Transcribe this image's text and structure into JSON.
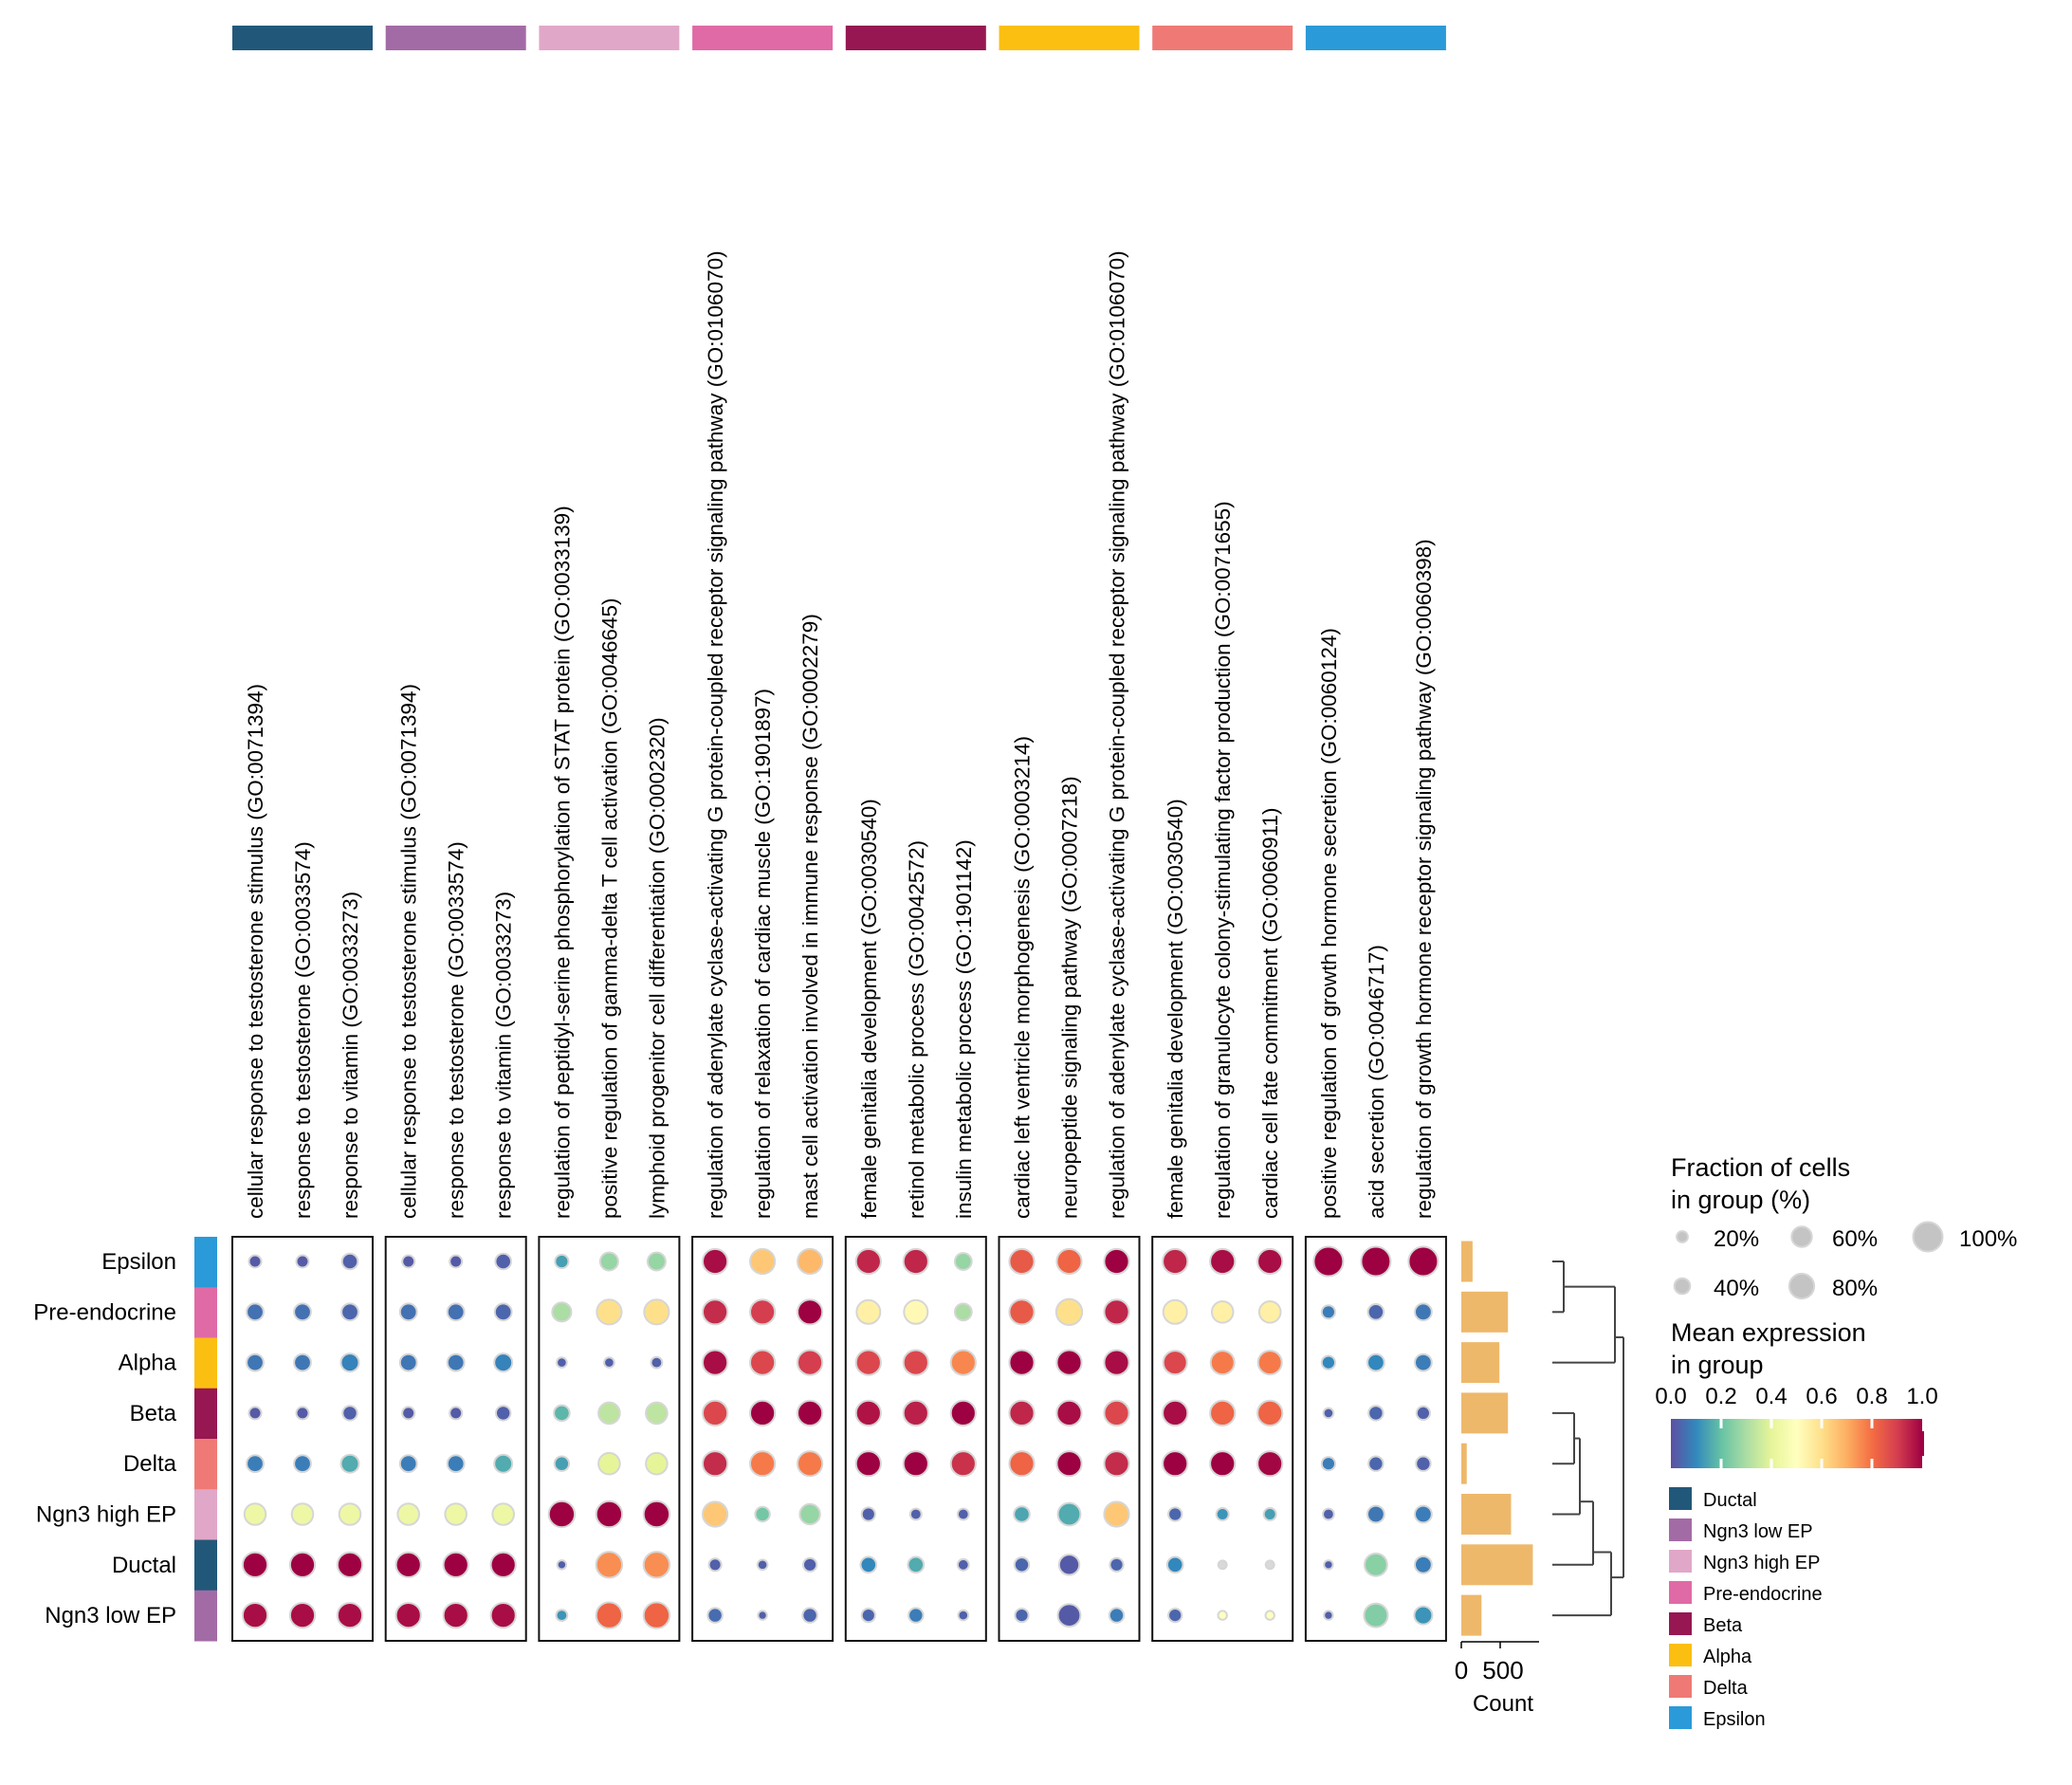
{
  "chart_data": {
    "type": "dotplot",
    "title": "",
    "groups": [
      "Epsilon",
      "Pre-endocrine",
      "Alpha",
      "Beta",
      "Delta",
      "Ngn3 high EP",
      "Ductal",
      "Ngn3 low EP"
    ],
    "group_colors": [
      "#2a9ad8",
      "#e06aa6",
      "#fbbf12",
      "#961752",
      "#ef7a75",
      "#e1a7c8",
      "#21587a",
      "#a36ba6"
    ],
    "panels": [
      {
        "group": "Ductal",
        "color": "#21587a",
        "terms": [
          "cellular response to testosterone stimulus (GO:0071394)",
          "response to testosterone (GO:0033574)",
          "response to vitamin (GO:0033273)"
        ]
      },
      {
        "group": "Ngn3 low EP",
        "color": "#a36ba6",
        "terms": [
          "cellular response to testosterone stimulus (GO:0071394)",
          "response to testosterone (GO:0033574)",
          "response to vitamin (GO:0033273)"
        ]
      },
      {
        "group": "Ngn3 high EP",
        "color": "#e1a7c8",
        "terms": [
          "regulation of peptidyl-serine phosphorylation of STAT protein (GO:0033139)",
          "positive regulation of gamma-delta T cell activation (GO:0046645)",
          "lymphoid progenitor cell differentiation (GO:0002320)"
        ]
      },
      {
        "group": "Pre-endocrine",
        "color": "#e06aa6",
        "terms": [
          "regulation of adenylate cyclase-activating G protein-coupled receptor signaling pathway (GO:0106070)",
          "regulation of relaxation of cardiac muscle (GO:1901897)",
          "mast cell activation involved in immune response (GO:0002279)"
        ]
      },
      {
        "group": "Beta",
        "color": "#961752",
        "terms": [
          "female genitalia development (GO:0030540)",
          "retinol metabolic process (GO:0042572)",
          "insulin metabolic process (GO:1901142)"
        ]
      },
      {
        "group": "Alpha",
        "color": "#fbbf12",
        "terms": [
          "cardiac left ventricle morphogenesis (GO:0003214)",
          "neuropeptide signaling pathway (GO:0007218)",
          "regulation of adenylate cyclase-activating G protein-coupled receptor signaling pathway (GO:0106070)"
        ]
      },
      {
        "group": "Delta",
        "color": "#ef7a75",
        "terms": [
          "female genitalia development (GO:0030540)",
          "regulation of granulocyte colony-stimulating factor production (GO:0071655)",
          "cardiac cell fate commitment (GO:0060911)"
        ]
      },
      {
        "group": "Epsilon",
        "color": "#2a9ad8",
        "terms": [
          "positive regulation of growth hormone secretion (GO:0060124)",
          "acid secretion (GO:0046717)",
          "regulation of growth hormone receptor signaling pathway (GO:0060398)"
        ]
      }
    ],
    "mean_expression": [
      [
        0.02,
        0.02,
        0.03,
        0.02,
        0.02,
        0.03,
        0.14,
        0.27,
        0.27,
        0.98,
        0.65,
        0.68,
        0.94,
        0.94,
        0.27,
        0.84,
        0.82,
        1.0,
        0.94,
        0.98,
        0.98,
        1.0,
        1.0,
        1.0
      ],
      [
        0.06,
        0.06,
        0.04,
        0.06,
        0.06,
        0.04,
        0.3,
        0.6,
        0.6,
        0.93,
        0.9,
        1.0,
        0.55,
        0.52,
        0.3,
        0.84,
        0.6,
        0.94,
        0.55,
        0.55,
        0.55,
        0.08,
        0.04,
        0.07
      ],
      [
        0.07,
        0.07,
        0.09,
        0.07,
        0.07,
        0.09,
        0.03,
        0.03,
        0.03,
        0.98,
        0.88,
        0.9,
        0.88,
        0.88,
        0.76,
        1.0,
        1.0,
        0.98,
        0.88,
        0.78,
        0.78,
        0.1,
        0.1,
        0.08
      ],
      [
        0.02,
        0.02,
        0.03,
        0.02,
        0.02,
        0.03,
        0.18,
        0.33,
        0.33,
        0.88,
        1.0,
        1.0,
        0.97,
        0.95,
        1.0,
        0.94,
        0.98,
        0.88,
        0.98,
        0.82,
        0.82,
        0.03,
        0.04,
        0.03
      ],
      [
        0.08,
        0.08,
        0.16,
        0.08,
        0.08,
        0.16,
        0.14,
        0.4,
        0.4,
        0.93,
        0.78,
        0.78,
        1.0,
        1.0,
        0.92,
        0.82,
        1.0,
        0.93,
        1.0,
        1.0,
        0.99,
        0.08,
        0.04,
        0.03
      ],
      [
        0.43,
        0.43,
        0.43,
        0.43,
        0.43,
        0.43,
        1.0,
        1.0,
        1.0,
        0.65,
        0.22,
        0.27,
        0.03,
        0.03,
        0.03,
        0.15,
        0.16,
        0.65,
        0.04,
        0.12,
        0.14,
        0.03,
        0.07,
        0.08
      ],
      [
        1.0,
        1.0,
        1.0,
        1.0,
        1.0,
        1.0,
        0.03,
        0.75,
        0.75,
        0.03,
        0.03,
        0.03,
        0.1,
        0.16,
        0.03,
        0.04,
        0.02,
        0.04,
        0.1,
        0.5,
        0.5,
        0.03,
        0.25,
        0.08
      ],
      [
        0.98,
        0.98,
        0.98,
        0.98,
        0.98,
        0.98,
        0.12,
        0.82,
        0.82,
        0.05,
        0.03,
        0.04,
        0.04,
        0.08,
        0.03,
        0.04,
        0.02,
        0.08,
        0.04,
        0.5,
        0.5,
        0.03,
        0.24,
        0.12
      ]
    ],
    "fraction_of_cells": [
      [
        0.25,
        0.25,
        0.4,
        0.25,
        0.25,
        0.4,
        0.3,
        0.5,
        0.5,
        0.8,
        0.8,
        0.8,
        0.8,
        0.8,
        0.45,
        0.8,
        0.8,
        0.8,
        0.8,
        0.8,
        0.8,
        1.0,
        1.0,
        1.0
      ],
      [
        0.45,
        0.45,
        0.45,
        0.45,
        0.45,
        0.45,
        0.55,
        0.8,
        0.8,
        0.8,
        0.8,
        0.8,
        0.75,
        0.75,
        0.45,
        0.8,
        0.85,
        0.8,
        0.75,
        0.65,
        0.65,
        0.3,
        0.4,
        0.45
      ],
      [
        0.45,
        0.45,
        0.5,
        0.45,
        0.45,
        0.5,
        0.15,
        0.15,
        0.2,
        0.8,
        0.8,
        0.8,
        0.8,
        0.8,
        0.8,
        0.8,
        0.8,
        0.8,
        0.75,
        0.75,
        0.75,
        0.3,
        0.45,
        0.45
      ],
      [
        0.25,
        0.25,
        0.35,
        0.25,
        0.25,
        0.35,
        0.4,
        0.65,
        0.65,
        0.8,
        0.8,
        0.8,
        0.8,
        0.8,
        0.8,
        0.8,
        0.8,
        0.8,
        0.8,
        0.8,
        0.8,
        0.15,
        0.35,
        0.3
      ],
      [
        0.45,
        0.45,
        0.5,
        0.45,
        0.45,
        0.5,
        0.35,
        0.65,
        0.65,
        0.8,
        0.8,
        0.8,
        0.8,
        0.8,
        0.8,
        0.8,
        0.8,
        0.8,
        0.8,
        0.8,
        0.8,
        0.3,
        0.35,
        0.35
      ],
      [
        0.65,
        0.65,
        0.65,
        0.65,
        0.65,
        0.65,
        0.85,
        0.85,
        0.85,
        0.8,
        0.35,
        0.6,
        0.3,
        0.2,
        0.2,
        0.4,
        0.7,
        0.8,
        0.3,
        0.25,
        0.25,
        0.2,
        0.45,
        0.45
      ],
      [
        0.8,
        0.8,
        0.8,
        0.8,
        0.8,
        0.8,
        0.1,
        0.85,
        0.85,
        0.25,
        0.15,
        0.3,
        0.4,
        0.4,
        0.2,
        0.35,
        0.6,
        0.3,
        0.4,
        0.08,
        0.08,
        0.1,
        0.7,
        0.45
      ],
      [
        0.8,
        0.8,
        0.8,
        0.8,
        0.8,
        0.8,
        0.2,
        0.85,
        0.85,
        0.35,
        0.1,
        0.35,
        0.3,
        0.35,
        0.15,
        0.3,
        0.7,
        0.35,
        0.3,
        0.1,
        0.1,
        0.1,
        0.75,
        0.5
      ]
    ],
    "counts": [
      145,
      600,
      490,
      600,
      70,
      640,
      920,
      260
    ],
    "count_axis": {
      "label": "Count",
      "ticks": [
        "0",
        "500"
      ],
      "tick_values": [
        0,
        500
      ],
      "xlim": [
        0,
        1000
      ],
      "bar_color": "#eeb86b"
    },
    "dendrogram": "((Epsilon, Pre-endocrine), Alpha), ((((Beta, Delta), Ngn3 high EP), Ductal), Ngn3 low EP)",
    "size_legend": {
      "title_line1": "Fraction of cells",
      "title_line2": "in group (%)",
      "items": [
        {
          "label": "20%",
          "value": 0.2
        },
        {
          "label": "40%",
          "value": 0.4
        },
        {
          "label": "60%",
          "value": 0.6
        },
        {
          "label": "80%",
          "value": 0.8
        },
        {
          "label": "100%",
          "value": 1.0
        }
      ]
    },
    "color_legend": {
      "title_line1": "Mean expression",
      "title_line2": "in group",
      "ticks": [
        "0.0",
        "0.2",
        "0.4",
        "0.6",
        "0.8",
        "1.0"
      ],
      "range": [
        0.0,
        1.0
      ],
      "colormap": "Spectral_r"
    },
    "group_legend": [
      {
        "label": "Ductal",
        "color": "#21587a"
      },
      {
        "label": "Ngn3 low EP",
        "color": "#a36ba6"
      },
      {
        "label": "Ngn3 high EP",
        "color": "#e1a7c8"
      },
      {
        "label": "Pre-endocrine",
        "color": "#e06aa6"
      },
      {
        "label": "Beta",
        "color": "#961752"
      },
      {
        "label": "Alpha",
        "color": "#fbbf12"
      },
      {
        "label": "Delta",
        "color": "#ef7a75"
      },
      {
        "label": "Epsilon",
        "color": "#2a9ad8"
      }
    ]
  }
}
